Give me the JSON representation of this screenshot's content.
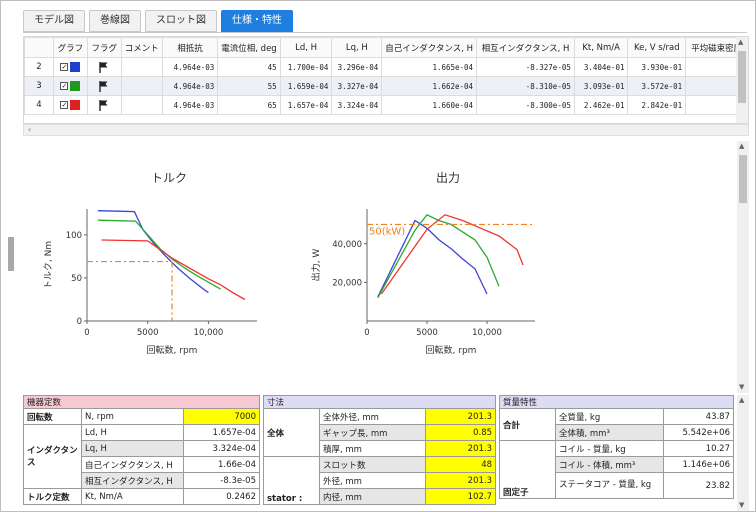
{
  "tabs": [
    "モデル図",
    "巻線図",
    "スロット図",
    "仕様・特性"
  ],
  "active_tab": 3,
  "grid": {
    "headers": [
      "",
      "グラフ",
      "フラグ",
      "コメント",
      "相抵抗",
      "電流位相, deg",
      "Ld, H",
      "Lq, H",
      "自己インダクタンス, H",
      "相互インダクタンス, H",
      "Kt, Nm/A",
      "Ke, V s/rad",
      "平均磁束密度"
    ],
    "rows": [
      {
        "id": "2",
        "color": "#1f3fd0",
        "comment": "",
        "r": "4.964e-03",
        "phase": "45",
        "ld": "1.700e-04",
        "lq": "3.296e-04",
        "self": "1.665e-04",
        "mutual": "-8.327e-05",
        "kt": "3.404e-01",
        "ke": "3.930e-01"
      },
      {
        "id": "3",
        "color": "#1e9a1e",
        "comment": "",
        "r": "4.964e-03",
        "phase": "55",
        "ld": "1.659e-04",
        "lq": "3.327e-04",
        "self": "1.662e-04",
        "mutual": "-8.310e-05",
        "kt": "3.093e-01",
        "ke": "3.572e-01"
      },
      {
        "id": "4",
        "color": "#e01f1f",
        "comment": "",
        "r": "4.964e-03",
        "phase": "65",
        "ld": "1.657e-04",
        "lq": "3.324e-04",
        "self": "1.660e-04",
        "mutual": "-8.300e-05",
        "kt": "2.462e-01",
        "ke": "2.842e-01"
      }
    ]
  },
  "chart_data": [
    {
      "type": "line",
      "title": "トルク",
      "xlabel": "回転数, rpm",
      "ylabel": "トルク, Nm",
      "xlim": [
        0,
        14000
      ],
      "ylim": [
        0,
        130
      ],
      "xticks": [
        0,
        5000,
        10000
      ],
      "yticks": [
        0,
        50,
        100
      ],
      "xtick_labels": [
        "0",
        "5000",
        "10,000"
      ],
      "ytick_labels": [
        "0",
        "50",
        "100"
      ],
      "series": [
        {
          "color": "#3a46d6",
          "x": [
            900,
            3900,
            4600,
            5500,
            6500,
            7500,
            8500,
            9500,
            10000
          ],
          "y": [
            128,
            127,
            106,
            90,
            75,
            61,
            49,
            38,
            33
          ]
        },
        {
          "color": "#2ea82e",
          "x": [
            900,
            4000,
            5000,
            6000,
            7000,
            8000,
            9000,
            10000,
            11000
          ],
          "y": [
            117,
            116,
            100,
            84,
            72,
            62,
            53,
            45,
            37
          ]
        },
        {
          "color": "#ee3333",
          "x": [
            1200,
            5000,
            6000,
            7000,
            8000,
            9000,
            10000,
            11000,
            12000,
            13000
          ],
          "y": [
            94,
            93,
            83,
            73,
            65,
            57,
            49,
            42,
            33,
            25
          ]
        }
      ],
      "marker": {
        "x": 7000,
        "y": 69,
        "color": "#f08020"
      }
    },
    {
      "type": "line",
      "title": "出力",
      "xlabel": "回転数, rpm",
      "ylabel": "出力, W",
      "xlim": [
        0,
        14000
      ],
      "ylim": [
        0,
        58000
      ],
      "xticks": [
        0,
        5000,
        10000
      ],
      "yticks": [
        20000,
        40000
      ],
      "xtick_labels": [
        "0",
        "5000",
        "10,000"
      ],
      "ytick_labels": [
        "20,000",
        "40,000"
      ],
      "series": [
        {
          "color": "#3a46d6",
          "x": [
            900,
            4000,
            5000,
            6000,
            7000,
            8000,
            9000,
            10000
          ],
          "y": [
            12500,
            52000,
            48000,
            42000,
            37500,
            32000,
            27000,
            14000
          ]
        },
        {
          "color": "#2ea82e",
          "x": [
            900,
            4000,
            5000,
            6000,
            7000,
            8000,
            9000,
            10000,
            11000
          ],
          "y": [
            12000,
            47000,
            55000,
            52000,
            50000,
            46000,
            42000,
            33000,
            18000
          ]
        },
        {
          "color": "#ee3333",
          "x": [
            1200,
            5000,
            6500,
            8000,
            9500,
            11000,
            12500,
            13000
          ],
          "y": [
            14000,
            47500,
            55000,
            52000,
            48000,
            44000,
            37000,
            29000
          ]
        }
      ],
      "marker_label": "50(kW)",
      "marker": {
        "y": 50000,
        "color": "#f08020"
      }
    }
  ],
  "machine": {
    "title": "機器定数",
    "rows": [
      {
        "label": "回転数",
        "sub": "N, rpm",
        "value": "7000",
        "highlight": true
      },
      {
        "label": "インダクタンス",
        "sub": "Ld, H",
        "value": "1.657e-04",
        "highlight": false
      },
      {
        "label": "",
        "sub": "Lq, H",
        "value": "3.324e-04",
        "highlight": false
      },
      {
        "label": "",
        "sub": "自己インダクタンス, H",
        "value": "1.66e-04",
        "highlight": false
      },
      {
        "label": "",
        "sub": "相互インダクタンス, H",
        "value": "-8.3e-05",
        "highlight": false
      },
      {
        "label": "トルク定数",
        "sub": "Kt, Nm/A",
        "value": "0.2462",
        "highlight": false
      }
    ]
  },
  "dims": {
    "title": "寸法",
    "group1": "全体",
    "group2": "stator :",
    "rows": [
      {
        "sub": "全体外径, mm",
        "value": "201.3"
      },
      {
        "sub": "ギャップ長, mm",
        "value": "0.85"
      },
      {
        "sub": "積厚, mm",
        "value": "201.3"
      },
      {
        "sub": "スロット数",
        "value": "48"
      },
      {
        "sub": "外径, mm",
        "value": "201.3"
      },
      {
        "sub": "内径, mm",
        "value": "102.7"
      }
    ]
  },
  "mass": {
    "title": "質量特性",
    "group1": "合計",
    "group2": "固定子",
    "rows": [
      {
        "sub": "全質量, kg",
        "value": "43.87"
      },
      {
        "sub": "全体積, mm³",
        "value": "5.542e+06"
      },
      {
        "sub": "コイル - 質量, kg",
        "value": "10.27"
      },
      {
        "sub": "コイル - 体積, mm³",
        "value": "1.146e+06"
      },
      {
        "sub": "ステータコア - 質量, kg",
        "value": "23.82"
      }
    ]
  }
}
